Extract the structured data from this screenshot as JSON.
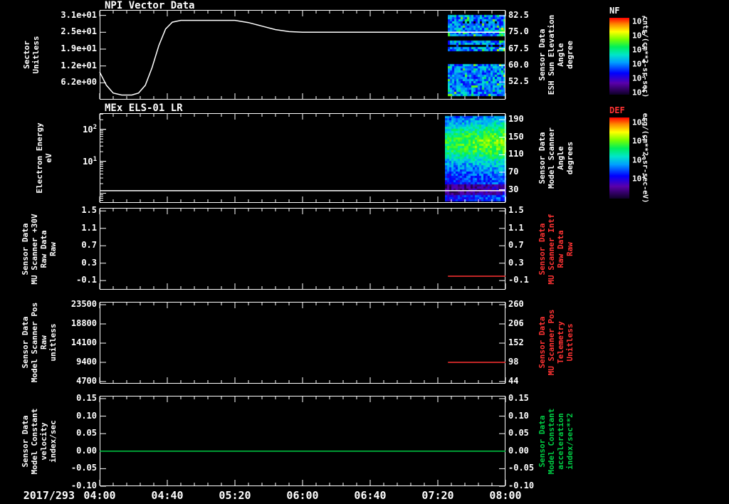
{
  "figure": {
    "date_label": "2017/293",
    "x_tick_labels": [
      "04:00",
      "04:40",
      "05:20",
      "06:00",
      "06:40",
      "07:20",
      "08:00"
    ],
    "time_range_minutes": [
      0,
      240
    ],
    "x_major_tick_minutes": 40,
    "x_minor_tick_minutes": 8,
    "background_color": "#000000",
    "foreground_color": "#ffffff"
  },
  "chart_data": [
    {
      "type": "line+spectrogram",
      "title": "NPI Vector Data",
      "left_axis": {
        "title_lines": [
          "Sector",
          "Unitless"
        ],
        "scale": "linear",
        "range": [
          0,
          33
        ],
        "tick_labels": [
          "3.1e+01",
          "2.5e+01",
          "1.9e+01",
          "1.2e+01",
          "6.2e+00"
        ],
        "tick_values": [
          31,
          24.8,
          18.6,
          12.4,
          6.2
        ],
        "color": "#ffffff"
      },
      "right_axis": {
        "title_lines": [
          "Sensor Data",
          "ESH Sun Elevation",
          "Angle",
          "degree"
        ],
        "scale": "linear",
        "range": [
          44.5,
          85.1
        ],
        "tick_labels": [
          "82.5",
          "75.0",
          "67.5",
          "60.0",
          "52.5"
        ],
        "tick_values": [
          82.5,
          75.0,
          67.5,
          60.0,
          52.5
        ],
        "color": "#ffffff"
      },
      "series": [
        {
          "name": "esh-sun-elevation-angle",
          "axis": "right",
          "color": "#ffffff",
          "points": [
            [
              0,
              57
            ],
            [
              4,
              51
            ],
            [
              8,
              47.5
            ],
            [
              13,
              46.6
            ],
            [
              19,
              46.6
            ],
            [
              23,
              47.5
            ],
            [
              27,
              51
            ],
            [
              31,
              59
            ],
            [
              35,
              69
            ],
            [
              39,
              76.5
            ],
            [
              43,
              79.6
            ],
            [
              48,
              80.4
            ],
            [
              80,
              80.4
            ],
            [
              88,
              79.4
            ],
            [
              96,
              77.8
            ],
            [
              104,
              76.2
            ],
            [
              112,
              75.3
            ],
            [
              120,
              75.0
            ],
            [
              240,
              75.0
            ]
          ]
        }
      ],
      "spectrogram": {
        "time_range_minutes": [
          206,
          240
        ],
        "style": "npi",
        "palette": "rainbow",
        "bands_frac": [
          [
            0.04,
            0.3
          ],
          [
            0.34,
            0.46
          ],
          [
            0.6,
            0.97
          ]
        ],
        "description": "NPI directional count-rate spectrogram, predominantly blue/cyan with dark gaps"
      }
    },
    {
      "type": "spectrogram",
      "title": "MEx ELS-01 LR",
      "left_axis": {
        "title_lines": [
          "Electron Energy",
          "eV"
        ],
        "scale": "log",
        "range": [
          0.5,
          320
        ],
        "tick_base": "10",
        "tick_exponents": [
          "2",
          "1"
        ],
        "tick_values": [
          100,
          10
        ],
        "color": "#ffffff"
      },
      "right_axis": {
        "title_lines": [
          "Sensor Data",
          "Model Scanner",
          "Angle",
          "degrees"
        ],
        "scale": "linear",
        "range": [
          0,
          205
        ],
        "tick_labels": [
          "190",
          "150",
          "110",
          "70",
          "30"
        ],
        "tick_values": [
          190,
          150,
          110,
          70,
          30
        ],
        "color": "#ffffff"
      },
      "series": [
        {
          "name": "energy-floor-line",
          "axis": "left",
          "color": "#ffffff",
          "points": [
            [
              0,
              1.2
            ],
            [
              240,
              1.2
            ]
          ]
        }
      ],
      "spectrogram": {
        "time_range_minutes": [
          204,
          240
        ],
        "style": "els",
        "palette": "rainbow",
        "bands_frac": [
          [
            0.02,
            0.98
          ]
        ],
        "description": "ELS differential energy flux, green maximum at low energies, dark band near bottom"
      }
    },
    {
      "type": "line",
      "title": "",
      "left_axis": {
        "title_lines": [
          "Sensor Data",
          "MU Scanner +30V",
          "Raw Data",
          "Raw"
        ],
        "scale": "linear",
        "range": [
          -0.31,
          1.57
        ],
        "tick_labels": [
          "1.5",
          "1.1",
          "0.7",
          "0.3",
          "-0.1"
        ],
        "tick_values": [
          1.5,
          1.1,
          0.7,
          0.3,
          -0.1
        ],
        "color": "#ffffff"
      },
      "right_axis": {
        "title_lines": [
          "Sensor Data",
          "MU Scanner Intf",
          "Raw Data",
          "Raw"
        ],
        "scale": "linear",
        "range": [
          -0.31,
          1.57
        ],
        "tick_labels": [
          "1.5",
          "1.1",
          "0.7",
          "0.3",
          "-0.1"
        ],
        "tick_values": [
          1.5,
          1.1,
          0.7,
          0.3,
          -0.1
        ],
        "color": "#ff3333"
      },
      "series": [
        {
          "name": "mu-scanner-intf-raw",
          "axis": "right",
          "color": "#ff3333",
          "points": [
            [
              206,
              0.0
            ],
            [
              240,
              0.0
            ]
          ]
        }
      ]
    },
    {
      "type": "line",
      "title": "",
      "left_axis": {
        "title_lines": [
          "Sensor Data",
          "Model Scanner Pos",
          "Raw",
          "unitless"
        ],
        "scale": "linear",
        "range": [
          4180,
          24200
        ],
        "tick_labels": [
          "23500",
          "18800",
          "14100",
          "9400",
          "4700"
        ],
        "tick_values": [
          23500,
          18800,
          14100,
          9400,
          4700
        ],
        "color": "#ffffff"
      },
      "right_axis": {
        "title_lines": [
          "Sensor Data",
          "MU Scanner Pos",
          "Telemetry",
          "Unitless"
        ],
        "scale": "linear",
        "range": [
          38,
          268
        ],
        "tick_labels": [
          "260",
          "206",
          "152",
          "98",
          "44"
        ],
        "tick_values": [
          260,
          206,
          152,
          98,
          44
        ],
        "color": "#ff3333"
      },
      "series": [
        {
          "name": "mu-scanner-pos-telemetry",
          "axis": "right",
          "color": "#ff3333",
          "points": [
            [
              206,
              98
            ],
            [
              240,
              98
            ]
          ]
        }
      ]
    },
    {
      "type": "line",
      "title": "",
      "left_axis": {
        "title_lines": [
          "Sensor Data",
          "Model Constant",
          "velocity",
          "index/sec"
        ],
        "scale": "linear",
        "range": [
          -0.1,
          0.158
        ],
        "tick_labels": [
          "0.15",
          "0.10",
          "0.05",
          "0.00",
          "-0.05",
          "-0.10"
        ],
        "tick_values": [
          0.15,
          0.1,
          0.05,
          0.0,
          -0.05,
          -0.1
        ],
        "color": "#ffffff"
      },
      "right_axis": {
        "title_lines": [
          "Sensor Data",
          "Model Constant",
          "acceleration",
          "index/sec**2"
        ],
        "scale": "linear",
        "range": [
          -0.1,
          0.158
        ],
        "tick_labels": [
          "0.15",
          "0.10",
          "0.05",
          "0.00",
          "-0.05",
          "-0.10"
        ],
        "tick_values": [
          0.15,
          0.1,
          0.05,
          0.0,
          -0.05,
          -0.1
        ],
        "color": "#00cc44"
      },
      "series": [
        {
          "name": "model-constant-acceleration",
          "axis": "right",
          "color": "#00cc44",
          "points": [
            [
              0,
              0.0
            ],
            [
              240,
              0.0
            ]
          ]
        }
      ]
    }
  ],
  "colorbars": [
    {
      "title": "NF",
      "title_color": "#ffffff",
      "unit": "cnts/(cm**2-sr-sec)",
      "tick_base": "10",
      "tick_exponents": [
        "7",
        "6",
        "5",
        "4",
        "3",
        "2"
      ]
    },
    {
      "title": "DEF",
      "title_color": "#ff3333",
      "unit": "erg/(cm**2-sr-sec-eV)",
      "tick_base": "10",
      "tick_exponents": [
        "4",
        "3",
        "2",
        "1"
      ]
    }
  ]
}
